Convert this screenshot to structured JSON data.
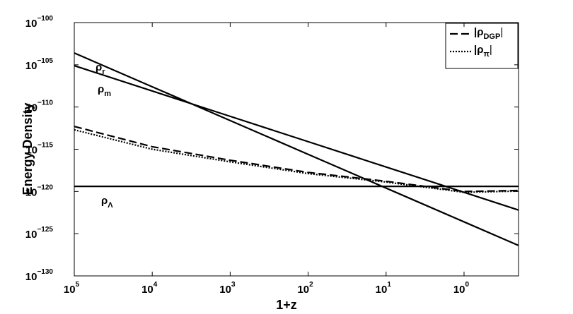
{
  "chart_data": {
    "type": "line",
    "x_label": "1+z",
    "y_label": "Energy Density",
    "x_scale": "log",
    "y_scale": "log",
    "xlim": [
      100000,
      0.2
    ],
    "ylim": [
      1e-130,
      1e-100
    ],
    "xticks": [
      {
        "value": 100000,
        "label": "10",
        "label_exponent": "5"
      },
      {
        "value": 10000,
        "label": "10",
        "label_exponent": "4"
      },
      {
        "value": 1000,
        "label": "10",
        "label_exponent": "3"
      },
      {
        "value": 100,
        "label": "10",
        "label_exponent": "2"
      },
      {
        "value": 10,
        "label": "10",
        "label_exponent": "1"
      },
      {
        "value": 1,
        "label": "10",
        "label_exponent": "0"
      }
    ],
    "yticks": [
      {
        "value": 1e-130,
        "label": "10",
        "label_exponent": "−130"
      },
      {
        "value": 1e-125,
        "label": "10",
        "label_exponent": "−125"
      },
      {
        "value": 1e-120,
        "label": "10",
        "label_exponent": "−120"
      },
      {
        "value": 1e-115,
        "label": "10",
        "label_exponent": "−115"
      },
      {
        "value": 1e-110,
        "label": "10",
        "label_exponent": "−110"
      },
      {
        "value": 1e-105,
        "label": "10",
        "label_exponent": "−105"
      },
      {
        "value": 1e-100,
        "label": "10",
        "label_exponent": "−100"
      }
    ],
    "x": [
      100000,
      10000,
      1000,
      100,
      10,
      1,
      0.2
    ],
    "legend_position": "upper right",
    "series": [
      {
        "name": "ρ",
        "name_subscript": "r",
        "legend": false,
        "color": "#000000",
        "dash": "solid",
        "values": [
          2.5e-104,
          2.5e-108,
          2.5e-112,
          2.5e-116,
          2.5e-120,
          2.5e-124,
          4e-127
        ]
      },
      {
        "name": "ρ",
        "name_subscript": "m",
        "legend": false,
        "color": "#000000",
        "dash": "solid",
        "values": [
          7.9e-106,
          7.9e-109,
          7.9e-112,
          7.9e-115,
          7.9e-118,
          7.9e-121,
          6.3e-123
        ]
      },
      {
        "name": "ρ",
        "name_subscript": "Λ",
        "legend": false,
        "color": "#000000",
        "dash": "solid",
        "values": [
          4e-120,
          4e-120,
          4e-120,
          4e-120,
          4e-120,
          4e-120,
          4e-120
        ]
      },
      {
        "name": "|ρ",
        "name_subscript": "DGP",
        "name_suffix": "|",
        "legend": true,
        "color": "#000000",
        "dash": "dashed",
        "values": [
          5e-113,
          2e-115,
          5e-117,
          1.8e-118,
          1.6e-119,
          1e-120,
          1.3e-120
        ]
      },
      {
        "name": "|ρ",
        "name_subscript": "π",
        "name_suffix": "|",
        "legend": true,
        "color": "#000000",
        "dash": "dotted",
        "values": [
          2e-113,
          1e-115,
          3.2e-117,
          1.3e-118,
          1.3e-119,
          7.9e-121,
          1.1e-120
        ]
      }
    ]
  }
}
